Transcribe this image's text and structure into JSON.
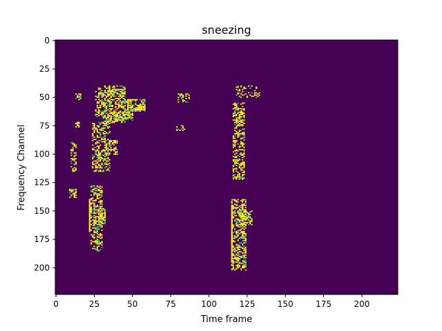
{
  "chart_data": {
    "type": "heatmap",
    "title": "sneezing",
    "xlabel": "Time frame",
    "ylabel": "Frequency Channel",
    "xlim": [
      0,
      224
    ],
    "ylim": [
      224,
      0
    ],
    "x_ticks": [
      0,
      25,
      50,
      75,
      100,
      125,
      150,
      175,
      200
    ],
    "y_ticks": [
      0,
      25,
      50,
      75,
      100,
      125,
      150,
      175,
      200
    ],
    "grid": false,
    "colormap": {
      "low": "#440154",
      "high": "#fde725",
      "mid": "#35b779"
    },
    "binary_values": [
      0,
      1
    ],
    "active_regions": [
      {
        "x": [
          13,
          16
        ],
        "y": [
          46,
          52
        ],
        "density": 0.6
      },
      {
        "x": [
          13,
          15
        ],
        "y": [
          72,
          76
        ],
        "density": 0.6
      },
      {
        "x": [
          10,
          13
        ],
        "y": [
          90,
          115
        ],
        "density": 0.45
      },
      {
        "x": [
          9,
          13
        ],
        "y": [
          130,
          138
        ],
        "density": 0.6
      },
      {
        "x": [
          26,
          32
        ],
        "y": [
          42,
          68
        ],
        "density": 0.45
      },
      {
        "x": [
          32,
          45
        ],
        "y": [
          40,
          72
        ],
        "density": 0.55
      },
      {
        "x": [
          45,
          58
        ],
        "y": [
          52,
          62
        ],
        "density": 0.7
      },
      {
        "x": [
          38,
          50
        ],
        "y": [
          63,
          70
        ],
        "density": 0.6
      },
      {
        "x": [
          24,
          35
        ],
        "y": [
          72,
          115
        ],
        "density": 0.45
      },
      {
        "x": [
          32,
          40
        ],
        "y": [
          88,
          100
        ],
        "density": 0.55
      },
      {
        "x": [
          23,
          30
        ],
        "y": [
          128,
          185
        ],
        "density": 0.5
      },
      {
        "x": [
          28,
          32
        ],
        "y": [
          148,
          162
        ],
        "density": 0.6
      },
      {
        "x": [
          79,
          87
        ],
        "y": [
          47,
          54
        ],
        "density": 0.4
      },
      {
        "x": [
          79,
          84
        ],
        "y": [
          75,
          79
        ],
        "density": 0.4
      },
      {
        "x": [
          116,
          123
        ],
        "y": [
          55,
          122
        ],
        "density": 0.45
      },
      {
        "x": [
          118,
          133
        ],
        "y": [
          40,
          50
        ],
        "density": 0.3
      },
      {
        "x": [
          115,
          124
        ],
        "y": [
          140,
          202
        ],
        "density": 0.5
      },
      {
        "x": [
          120,
          128
        ],
        "y": [
          150,
          162
        ],
        "density": 0.6
      }
    ],
    "solid_lines": [
      {
        "x": 22,
        "y": [
          140,
          168
        ]
      },
      {
        "x": 115,
        "y": [
          145,
          195
        ]
      }
    ]
  }
}
